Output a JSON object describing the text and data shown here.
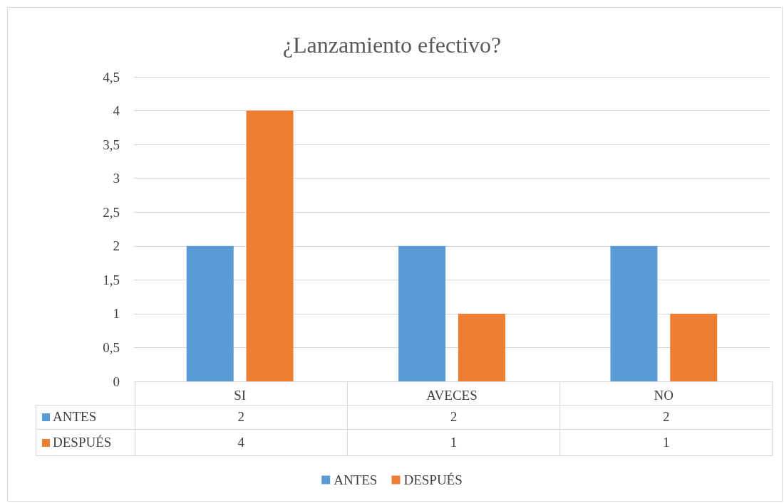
{
  "chart_data": {
    "type": "bar",
    "title": "¿Lanzamiento efectivo?",
    "categories": [
      "SI",
      "AVECES",
      "NO"
    ],
    "series": [
      {
        "name": "ANTES",
        "color": "#5b9bd5",
        "values": [
          2,
          2,
          2
        ]
      },
      {
        "name": "DESPUÉS",
        "color": "#ed7d31",
        "values": [
          4,
          1,
          1
        ]
      }
    ],
    "ylim": [
      0,
      4.5
    ],
    "yticks": [
      {
        "value": 0,
        "label": "0"
      },
      {
        "value": 0.5,
        "label": "0,5"
      },
      {
        "value": 1,
        "label": "1"
      },
      {
        "value": 1.5,
        "label": "1,5"
      },
      {
        "value": 2,
        "label": "2"
      },
      {
        "value": 2.5,
        "label": "2,5"
      },
      {
        "value": 3,
        "label": "3"
      },
      {
        "value": 3.5,
        "label": "3,5"
      },
      {
        "value": 4,
        "label": "4"
      },
      {
        "value": 4.5,
        "label": "4,5"
      }
    ],
    "grid": "y",
    "legend": "bottom",
    "data_labels": true
  }
}
